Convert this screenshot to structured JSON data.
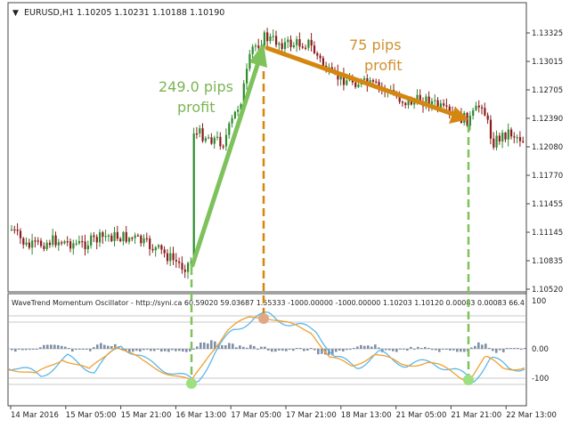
{
  "window": {
    "menu_icon": "triangle-down-icon",
    "symbol_header": "EURUSD,H1  1.10205 1.10231 1.10188 1.10190"
  },
  "price_axis": {
    "labels": [
      "1.13325",
      "1.13015",
      "1.12705",
      "1.12390",
      "1.12080",
      "1.11770",
      "1.11455",
      "1.11145",
      "1.10835",
      "1.10520"
    ]
  },
  "oscillator": {
    "header": "WaveTrend Momentum Oscillator - http://syni.ca 60.59020 59.03687 1.55333 -1000.00000 -1000.00000 1.10203 1.10120 0.00083 0.00083 66.4",
    "axis_labels": [
      "100",
      "0.00",
      "-100"
    ]
  },
  "time_axis": {
    "labels": [
      "14 Mar 2016",
      "15 Mar 05:00",
      "15 Mar 21:00",
      "16 Mar 13:00",
      "17 Mar 05:00",
      "17 Mar 21:00",
      "18 Mar 13:00",
      "21 Mar 05:00",
      "21 Mar 21:00",
      "22 Mar 13:00"
    ]
  },
  "annotations": {
    "long_profit": [
      "249.0 pips",
      "profit"
    ],
    "short_profit": [
      "75 pips",
      "profit"
    ]
  },
  "colors": {
    "bull": "#2e8b2e",
    "bear": "#8b1a1a",
    "green_arrow": "#7dc25a",
    "orange_arrow": "#d4870f",
    "green_text": "#7ab552",
    "orange_text": "#d09030",
    "wt_orange": "#f0a030",
    "wt_blue": "#5ab8e8",
    "histogram": "#7f8fa6"
  }
}
